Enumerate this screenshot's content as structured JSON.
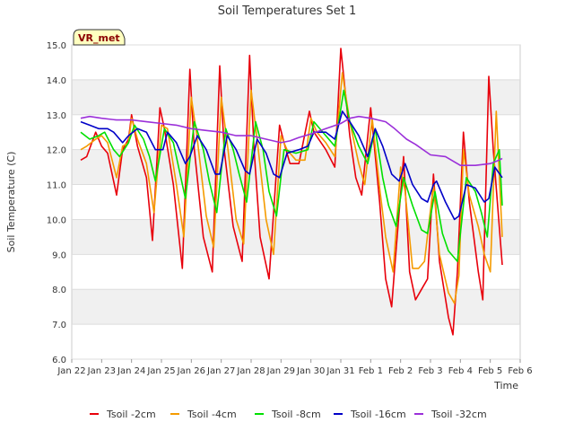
{
  "chart_data": {
    "type": "line",
    "title": "Soil Temperatures Set 1",
    "xlabel": "Time",
    "ylabel": "Soil Temperature (C)",
    "site_label": "VR_met",
    "xlim": [
      0,
      15
    ],
    "ylim": [
      6.0,
      15.0
    ],
    "yticks": [
      "6.0",
      "7.0",
      "8.0",
      "9.0",
      "10.0",
      "11.0",
      "12.0",
      "13.0",
      "14.0",
      "15.0"
    ],
    "xticks": [
      "Jan 22",
      "Jan 23",
      "Jan 24",
      "Jan 25",
      "Jan 26",
      "Jan 27",
      "Jan 28",
      "Jan 29",
      "Jan 30",
      "Jan 31",
      "Feb 1",
      "Feb 2",
      "Feb 3",
      "Feb 4",
      "Feb 5",
      "Feb 6"
    ],
    "legend_position": "bottom",
    "series": [
      {
        "name": "Tsoil -2cm",
        "color": "#e8000b",
        "x": [
          0.3,
          0.5,
          0.8,
          1.0,
          1.2,
          1.5,
          1.7,
          1.9,
          2.0,
          2.2,
          2.5,
          2.7,
          2.95,
          3.1,
          3.4,
          3.7,
          3.95,
          4.1,
          4.4,
          4.7,
          4.95,
          5.1,
          5.4,
          5.7,
          5.95,
          6.1,
          6.3,
          6.6,
          6.95,
          7.1,
          7.3,
          7.6,
          7.95,
          8.1,
          8.5,
          8.8,
          9.0,
          9.3,
          9.5,
          9.7,
          10.0,
          10.3,
          10.5,
          10.7,
          10.8,
          11.1,
          11.3,
          11.5,
          11.7,
          11.9,
          12.1,
          12.3,
          12.6,
          12.75,
          12.9,
          13.1,
          13.3,
          13.6,
          13.75,
          13.95,
          14.1,
          14.4
        ],
        "values": [
          11.7,
          11.8,
          12.5,
          12.1,
          11.9,
          10.7,
          12.0,
          12.3,
          13.0,
          12.1,
          11.2,
          9.4,
          13.2,
          12.6,
          11.0,
          8.6,
          14.3,
          12.0,
          9.5,
          8.5,
          14.4,
          12.0,
          9.8,
          8.8,
          14.7,
          12.0,
          9.5,
          8.3,
          12.7,
          12.2,
          11.6,
          11.6,
          13.1,
          12.5,
          12.0,
          11.5,
          14.9,
          12.4,
          11.2,
          10.7,
          13.2,
          10.5,
          8.3,
          7.5,
          8.6,
          11.8,
          8.5,
          7.7,
          8.0,
          8.3,
          11.3,
          8.8,
          7.2,
          6.7,
          8.5,
          12.5,
          10.5,
          8.5,
          7.7,
          14.1,
          12.0,
          8.7
        ]
      },
      {
        "name": "Tsoil -4cm",
        "color": "#f59b00",
        "x": [
          0.3,
          0.5,
          0.8,
          1.0,
          1.2,
          1.5,
          1.7,
          1.9,
          2.0,
          2.2,
          2.5,
          2.75,
          3.0,
          3.2,
          3.5,
          3.75,
          4.0,
          4.2,
          4.5,
          4.75,
          5.0,
          5.2,
          5.5,
          5.75,
          6.0,
          6.2,
          6.5,
          6.75,
          7.0,
          7.2,
          7.5,
          7.8,
          8.0,
          8.2,
          8.5,
          8.8,
          9.05,
          9.3,
          9.6,
          9.8,
          10.05,
          10.3,
          10.5,
          10.75,
          11.0,
          11.15,
          11.4,
          11.6,
          11.8,
          12.1,
          12.3,
          12.6,
          12.8,
          12.95,
          13.1,
          13.3,
          13.6,
          13.8,
          14.0,
          14.2,
          14.4
        ],
        "values": [
          12.0,
          12.1,
          12.3,
          12.4,
          12.2,
          11.2,
          12.1,
          12.2,
          12.9,
          12.3,
          11.6,
          10.2,
          12.7,
          12.6,
          11.0,
          9.5,
          13.5,
          12.3,
          10.1,
          9.2,
          13.5,
          12.2,
          10.0,
          9.3,
          13.7,
          12.3,
          10.0,
          9.0,
          12.4,
          12.0,
          11.7,
          11.7,
          12.9,
          12.5,
          12.2,
          11.8,
          14.2,
          12.8,
          11.6,
          11.0,
          12.9,
          10.9,
          9.5,
          8.5,
          11.5,
          10.8,
          8.6,
          8.6,
          8.8,
          11.0,
          9.0,
          7.9,
          7.6,
          8.4,
          12.0,
          10.7,
          9.8,
          9.0,
          8.5,
          13.1,
          9.5
        ]
      },
      {
        "name": "Tsoil -8cm",
        "color": "#00e000",
        "x": [
          0.3,
          0.6,
          0.9,
          1.1,
          1.4,
          1.6,
          1.9,
          2.1,
          2.4,
          2.6,
          2.8,
          3.1,
          3.4,
          3.6,
          3.8,
          4.1,
          4.4,
          4.6,
          4.85,
          5.15,
          5.4,
          5.6,
          5.85,
          6.15,
          6.4,
          6.6,
          6.85,
          7.1,
          7.5,
          7.9,
          8.1,
          8.5,
          8.8,
          9.1,
          9.3,
          9.6,
          9.9,
          10.15,
          10.4,
          10.6,
          10.85,
          11.1,
          11.4,
          11.7,
          11.9,
          12.15,
          12.4,
          12.6,
          12.9,
          13.2,
          13.5,
          13.7,
          13.9,
          14.1,
          14.3,
          14.4
        ],
        "values": [
          12.5,
          12.3,
          12.4,
          12.5,
          12.0,
          11.8,
          12.2,
          12.7,
          12.3,
          11.8,
          11.1,
          12.6,
          12.2,
          11.4,
          10.6,
          12.8,
          12.0,
          11.1,
          10.2,
          12.6,
          12.0,
          11.3,
          10.5,
          12.8,
          12.0,
          10.8,
          10.1,
          12.0,
          11.9,
          12.0,
          12.8,
          12.4,
          12.1,
          13.7,
          12.8,
          12.1,
          11.6,
          12.6,
          11.2,
          10.4,
          9.8,
          11.2,
          10.4,
          9.7,
          9.6,
          10.8,
          9.6,
          9.1,
          8.8,
          11.2,
          10.8,
          10.2,
          9.5,
          11.6,
          12.0,
          10.4
        ]
      },
      {
        "name": "Tsoil -16cm",
        "color": "#0000c8",
        "x": [
          0.3,
          0.6,
          0.9,
          1.2,
          1.4,
          1.7,
          1.9,
          2.2,
          2.5,
          2.8,
          3.05,
          3.2,
          3.5,
          3.8,
          3.95,
          4.2,
          4.5,
          4.8,
          4.95,
          5.2,
          5.5,
          5.8,
          5.95,
          6.2,
          6.5,
          6.75,
          6.95,
          7.2,
          7.6,
          7.9,
          8.1,
          8.5,
          8.8,
          9.05,
          9.3,
          9.6,
          9.9,
          10.15,
          10.4,
          10.7,
          10.95,
          11.15,
          11.4,
          11.7,
          11.9,
          12.1,
          12.2,
          12.5,
          12.8,
          12.95,
          13.2,
          13.5,
          13.8,
          13.95,
          14.15,
          14.4
        ],
        "values": [
          12.8,
          12.7,
          12.6,
          12.6,
          12.5,
          12.2,
          12.4,
          12.6,
          12.5,
          12.0,
          12.0,
          12.5,
          12.2,
          11.6,
          11.8,
          12.4,
          12.0,
          11.3,
          11.3,
          12.4,
          12.0,
          11.4,
          11.3,
          12.3,
          11.9,
          11.3,
          11.2,
          11.9,
          12.0,
          12.1,
          12.5,
          12.5,
          12.3,
          13.1,
          12.8,
          12.4,
          11.8,
          12.6,
          12.1,
          11.3,
          11.1,
          11.6,
          11.0,
          10.6,
          10.5,
          11.0,
          11.1,
          10.5,
          10.0,
          10.1,
          11.0,
          10.9,
          10.5,
          10.6,
          11.5,
          11.2
        ]
      },
      {
        "name": "Tsoil -32cm",
        "color": "#9b30d9",
        "x": [
          0.3,
          0.6,
          1.0,
          1.5,
          2.0,
          2.5,
          3.0,
          3.5,
          4.0,
          4.5,
          5.0,
          5.5,
          6.0,
          6.5,
          7.0,
          7.3,
          7.6,
          8.0,
          8.5,
          9.0,
          9.3,
          9.6,
          10.0,
          10.5,
          10.8,
          11.0,
          11.2,
          11.5,
          12.0,
          12.5,
          13.0,
          13.5,
          14.0,
          14.3,
          14.4
        ],
        "values": [
          12.9,
          12.95,
          12.9,
          12.85,
          12.85,
          12.8,
          12.75,
          12.7,
          12.6,
          12.55,
          12.5,
          12.4,
          12.4,
          12.3,
          12.2,
          12.25,
          12.35,
          12.45,
          12.6,
          12.75,
          12.9,
          12.95,
          12.9,
          12.8,
          12.6,
          12.45,
          12.3,
          12.15,
          11.85,
          11.8,
          11.55,
          11.55,
          11.6,
          11.7,
          11.75
        ]
      }
    ]
  }
}
